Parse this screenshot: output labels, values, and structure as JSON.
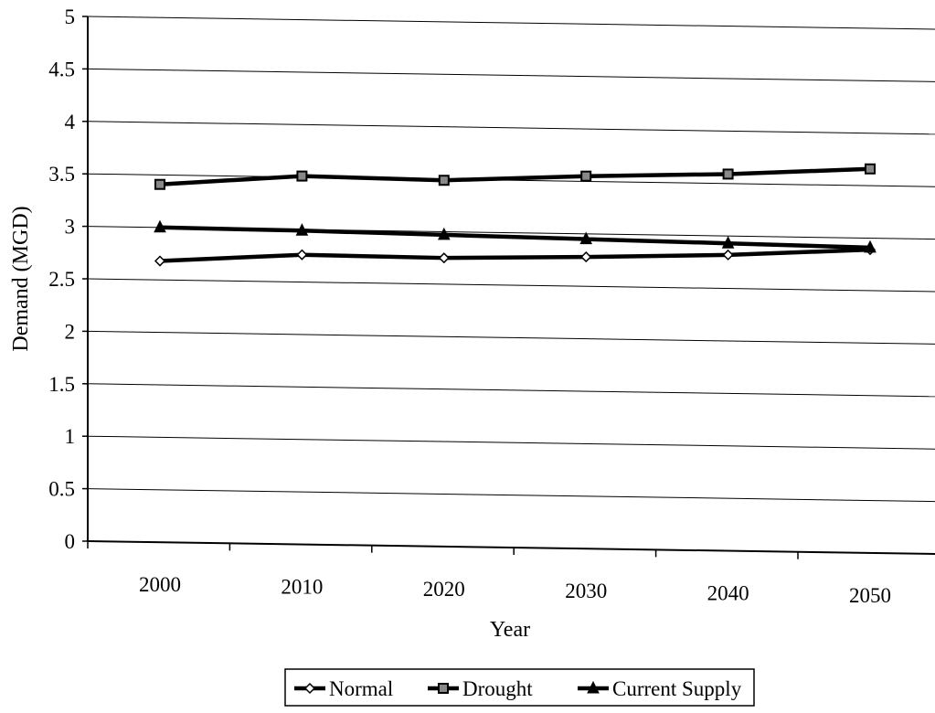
{
  "chart_data": {
    "type": "line",
    "title": "",
    "xlabel": "Year",
    "ylabel": "Demand (MGD)",
    "categories": [
      "2000",
      "2010",
      "2020",
      "2030",
      "2040",
      "2050"
    ],
    "ylim": [
      0,
      5
    ],
    "yticks": [
      "0",
      "0.5",
      "1",
      "1.5",
      "2",
      "2.5",
      "3",
      "3.5",
      "4",
      "4.5",
      "5"
    ],
    "grid": "horizontal",
    "legend_position": "bottom",
    "series": [
      {
        "name": "Normal",
        "values": [
          2.68,
          2.76,
          2.75,
          2.78,
          2.82,
          2.89
        ],
        "marker": "diamond"
      },
      {
        "name": "Drought",
        "values": [
          3.41,
          3.51,
          3.49,
          3.55,
          3.59,
          3.66
        ],
        "marker": "square"
      },
      {
        "name": "Current Supply",
        "values": [
          3.0,
          2.99,
          2.97,
          2.95,
          2.93,
          2.91
        ],
        "marker": "triangle"
      }
    ]
  }
}
